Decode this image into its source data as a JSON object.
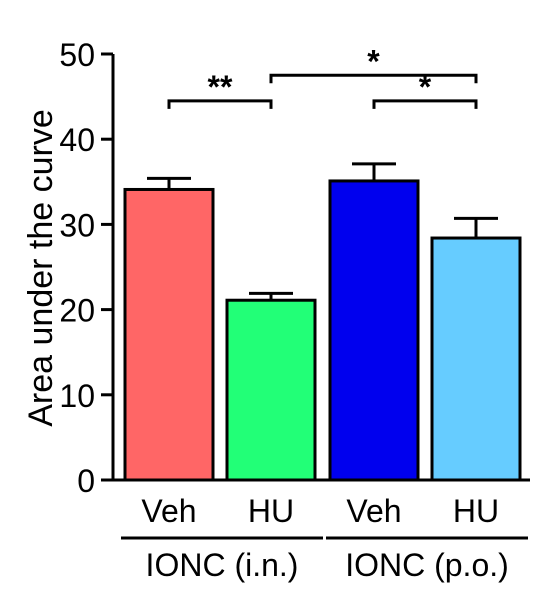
{
  "chart_data": {
    "type": "bar",
    "ylabel": "Area under the curve",
    "ylim": [
      0,
      50
    ],
    "yticks": [
      0,
      10,
      20,
      30,
      40,
      50
    ],
    "categories": [
      "Veh",
      "HU",
      "Veh",
      "HU"
    ],
    "groups": [
      {
        "label": "IONC (i.n.)",
        "category_indices": [
          0,
          1
        ]
      },
      {
        "label": "IONC (p.o.)",
        "category_indices": [
          2,
          3
        ]
      }
    ],
    "values": [
      34.1,
      21.1,
      35.1,
      28.4
    ],
    "errors": [
      1.3,
      0.8,
      2.0,
      2.3
    ],
    "colors": [
      "#ff6666",
      "#22ff77",
      "#0000ee",
      "#66ccff"
    ],
    "significance": [
      {
        "from": 0,
        "to": 1,
        "label": "**",
        "y": 44.5
      },
      {
        "from": 1,
        "to": 3,
        "label": "*",
        "y": 47.5
      },
      {
        "from": 2,
        "to": 3,
        "label": "*",
        "y": 44.5
      }
    ]
  }
}
